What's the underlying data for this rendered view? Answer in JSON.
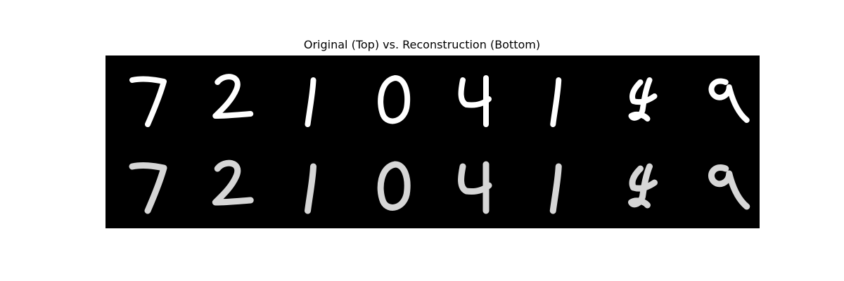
{
  "figure": {
    "title": "Original (Top) vs. Reconstruction (Bottom)",
    "rows": [
      {
        "digits": [
          7,
          2,
          1,
          0,
          4,
          1,
          4,
          9
        ]
      },
      {
        "digits": [
          7,
          2,
          1,
          0,
          4,
          1,
          4,
          9
        ]
      }
    ],
    "colors": {
      "background": "#000000",
      "stroke_top": "#ffffff",
      "stroke_bottom": "#e8e8e8"
    }
  }
}
